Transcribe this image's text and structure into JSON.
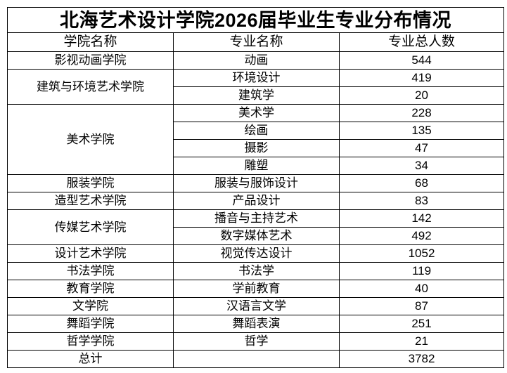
{
  "title": "北海艺术设计学院2026届毕业生专业分布情况",
  "headers": [
    "学院名称",
    "专业名称",
    "专业总人数"
  ],
  "colleges": [
    {
      "name": "影视动画学院",
      "majors": [
        {
          "name": "动画",
          "count": "544"
        }
      ]
    },
    {
      "name": "建筑与环境艺术学院",
      "majors": [
        {
          "name": "环境设计",
          "count": "419"
        },
        {
          "name": "建筑学",
          "count": "20"
        }
      ]
    },
    {
      "name": "美术学院",
      "majors": [
        {
          "name": "美术学",
          "count": "228"
        },
        {
          "name": "绘画",
          "count": "135"
        },
        {
          "name": "摄影",
          "count": "47"
        },
        {
          "name": "雕塑",
          "count": "34"
        }
      ]
    },
    {
      "name": "服装学院",
      "majors": [
        {
          "name": "服装与服饰设计",
          "count": "68"
        }
      ]
    },
    {
      "name": "造型艺术学院",
      "majors": [
        {
          "name": "产品设计",
          "count": "83"
        }
      ]
    },
    {
      "name": "传媒艺术学院",
      "majors": [
        {
          "name": "播音与主持艺术",
          "count": "142"
        },
        {
          "name": "数字媒体艺术",
          "count": "492"
        }
      ]
    },
    {
      "name": "设计艺术学院",
      "majors": [
        {
          "name": "视觉传达设计",
          "count": "1052"
        }
      ]
    },
    {
      "name": "书法学院",
      "majors": [
        {
          "name": "书法学",
          "count": "119"
        }
      ]
    },
    {
      "name": "教育学院",
      "majors": [
        {
          "name": "学前教育",
          "count": "40"
        }
      ]
    },
    {
      "name": "文学院",
      "majors": [
        {
          "name": "汉语言文学",
          "count": "87"
        }
      ]
    },
    {
      "name": "舞蹈学院",
      "majors": [
        {
          "name": "舞蹈表演",
          "count": "251"
        }
      ]
    },
    {
      "name": "哲学学院",
      "majors": [
        {
          "name": "哲学",
          "count": "21"
        }
      ]
    }
  ],
  "total": {
    "label": "总计",
    "major": "",
    "count": "3782"
  }
}
